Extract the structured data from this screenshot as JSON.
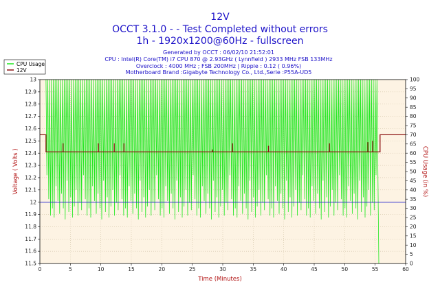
{
  "header": {
    "title": "12V",
    "subtitle1": "OCCT 3.1.0 -  - Test Completed without errors",
    "subtitle2": "1h - 1920x1200@60Hz - fullscreen"
  },
  "info": {
    "line1": "Generated by OCCT : 06/02/10 21:52:01",
    "line2": "CPU : Intel(R) Core(TM) i7 CPU 870 @ 2.93GHz ( Lynnfield ) 2933 MHz FSB 133MHz",
    "line3": "Overclock : 4000 MHz ; FSB 200MHz | Ripple : 0.12 ( 0.96%)",
    "line4": "Motherboard Brand :Gigabyte Technology Co., Ltd.,Serie :P55A-UD5"
  },
  "colors": {
    "plot_bg": "#fdf3e3",
    "grid": "#c8b89a",
    "cpu": "#1ee81e",
    "volt": "#8b1010",
    "ref": "#2b2bd0",
    "text_blue": "#1b10c8",
    "axis_red": "#b21313"
  },
  "legend": {
    "cpu": "CPU Usage",
    "volt": "12V"
  },
  "chart_data": {
    "type": "line",
    "title": "12V",
    "xlabel": "Time (Minutes)",
    "ylabel": "Voltage ( Volts )",
    "y2label": "CPU Usage (in %)",
    "xlim": [
      0,
      60
    ],
    "ylim": [
      11.5,
      13
    ],
    "y2lim": [
      0,
      100
    ],
    "grid": true,
    "legend_position": "top-left",
    "x_ticks": [
      0,
      5,
      10,
      15,
      20,
      25,
      30,
      35,
      40,
      45,
      50,
      55,
      60
    ],
    "y_ticks": [
      "11.5",
      "11.6",
      "11.7",
      "11.8",
      "11.9",
      "12",
      "12.1",
      "12.2",
      "12.3",
      "12.4",
      "12.5",
      "12.6",
      "12.7",
      "12.8",
      "12.9",
      "13"
    ],
    "y2_ticks": [
      0,
      5,
      10,
      15,
      20,
      25,
      30,
      35,
      40,
      45,
      50,
      55,
      60,
      65,
      70,
      75,
      80,
      85,
      90,
      95,
      100
    ],
    "reference_line": {
      "y": 12.0
    },
    "series": [
      {
        "name": "12V",
        "axis": "left",
        "baseline": 12.41,
        "x": [
          0,
          1.0,
          1.0,
          55.8,
          55.8,
          60
        ],
        "y": [
          12.55,
          12.55,
          12.41,
          12.41,
          12.55,
          12.55
        ],
        "spikes": [
          {
            "x": 3.8,
            "y": 12.48
          },
          {
            "x": 9.6,
            "y": 12.48
          },
          {
            "x": 12.2,
            "y": 12.48
          },
          {
            "x": 13.8,
            "y": 12.48
          },
          {
            "x": 28.3,
            "y": 12.43
          },
          {
            "x": 31.6,
            "y": 12.48
          },
          {
            "x": 37.5,
            "y": 12.46
          },
          {
            "x": 47.5,
            "y": 12.48
          },
          {
            "x": 53.8,
            "y": 12.49
          },
          {
            "x": 54.6,
            "y": 12.5
          }
        ]
      },
      {
        "name": "CPU Usage",
        "axis": "right",
        "start": 1.0,
        "end": 55.0,
        "period_min": 0.3,
        "high": 100,
        "low_values": [
          48,
          35,
          26,
          30,
          25,
          42,
          34,
          27,
          38,
          30,
          24,
          45,
          28,
          36,
          25,
          31,
          40,
          26,
          33,
          29
        ],
        "final_drop": {
          "x": 55.6,
          "y": 0
        }
      }
    ]
  }
}
